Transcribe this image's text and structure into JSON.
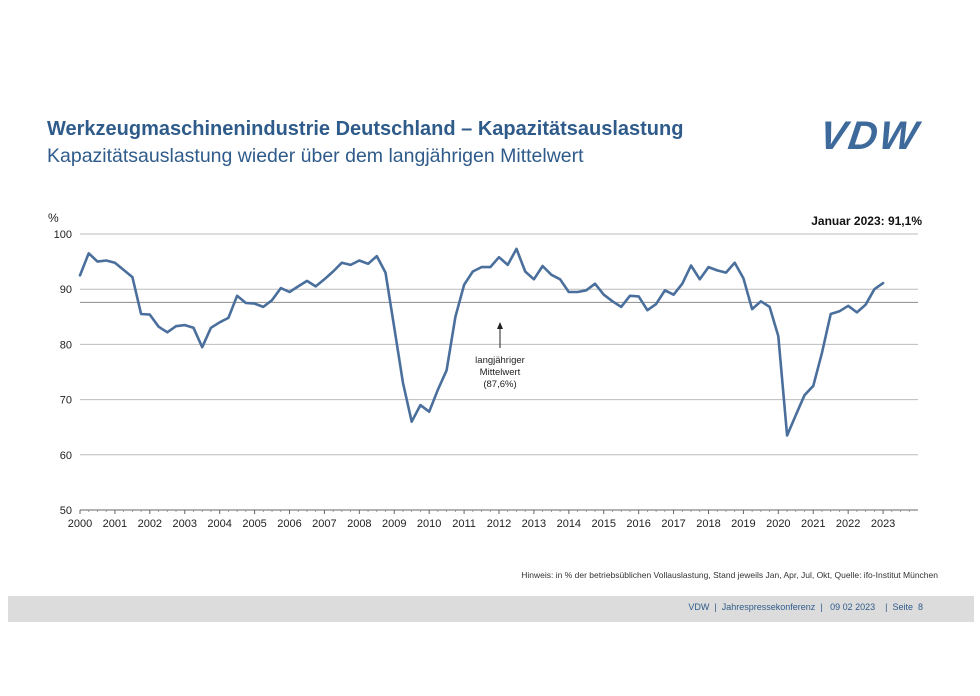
{
  "slide": {
    "title": "Werkzeugmaschinenindustrie Deutschland – Kapazitätsauslastung",
    "subtitle": "Kapazitätsauslastung wieder über dem langjährigen Mittelwert",
    "logo_text": "VDW",
    "hint": "Hinweis: in % der betriebsüblichen Vollauslastung, Stand jeweils Jan, Apr, Jul, Okt,  Quelle: ifo-Institut München",
    "footer": "VDW  |  Jahrespressekonferenz  |   09 02 2023    |  Seite  8"
  },
  "colors": {
    "line": "#4a6f9c",
    "title": "#2f5b8a",
    "grid": "#bbbbbb",
    "mean_line": "#999999"
  },
  "chart_data": {
    "type": "line",
    "title": "",
    "ylabel": "%",
    "xlabel": "",
    "ylim": [
      50,
      100
    ],
    "yticks": [
      50,
      60,
      70,
      80,
      90,
      100
    ],
    "xlim": [
      2000,
      2024
    ],
    "xticks": [
      "2000",
      "2001",
      "2002",
      "2003",
      "2004",
      "2005",
      "2006",
      "2007",
      "2008",
      "2009",
      "2010",
      "2011",
      "2012",
      "2013",
      "2014",
      "2015",
      "2016",
      "2017",
      "2018",
      "2019",
      "2020",
      "2021",
      "2022",
      "2023"
    ],
    "grid": "horizontal",
    "mean_value": 87.6,
    "annotation_top_right": "Januar 2023: 91,1%",
    "annotation_mean": [
      "langjähriger",
      "Mittelwert",
      "(87,6%)"
    ],
    "series": [
      {
        "name": "Kapazitätsauslastung",
        "start": 2000.0,
        "step": 0.25,
        "values": [
          92.5,
          96.5,
          95,
          95.2,
          94.8,
          93.5,
          92.2,
          85.5,
          85.4,
          83.2,
          82.2,
          83.3,
          83.5,
          83,
          79.5,
          83,
          84,
          84.8,
          88.8,
          87.5,
          87.4,
          86.8,
          88,
          90.2,
          89.5,
          90.5,
          91.5,
          90.5,
          91.8,
          93.2,
          94.8,
          94.4,
          95.2,
          94.6,
          96,
          93,
          83,
          73,
          66,
          69,
          67.8,
          71.8,
          75.3,
          85,
          90.8,
          93.2,
          94,
          94,
          95.8,
          94.4,
          97.3,
          93.2,
          91.8,
          94.2,
          92.6,
          91.8,
          89.5,
          89.5,
          89.8,
          91,
          89,
          87.8,
          86.8,
          88.8,
          88.7,
          86.2,
          87.3,
          89.8,
          89,
          91,
          94.3,
          91.8,
          94,
          93.4,
          93,
          94.8,
          92,
          86.4,
          87.8,
          86.8,
          81.5,
          63.5,
          67.2,
          70.8,
          72.5,
          78.5,
          85.5,
          86,
          87,
          85.8,
          87.2,
          90,
          91.1
        ]
      }
    ]
  }
}
